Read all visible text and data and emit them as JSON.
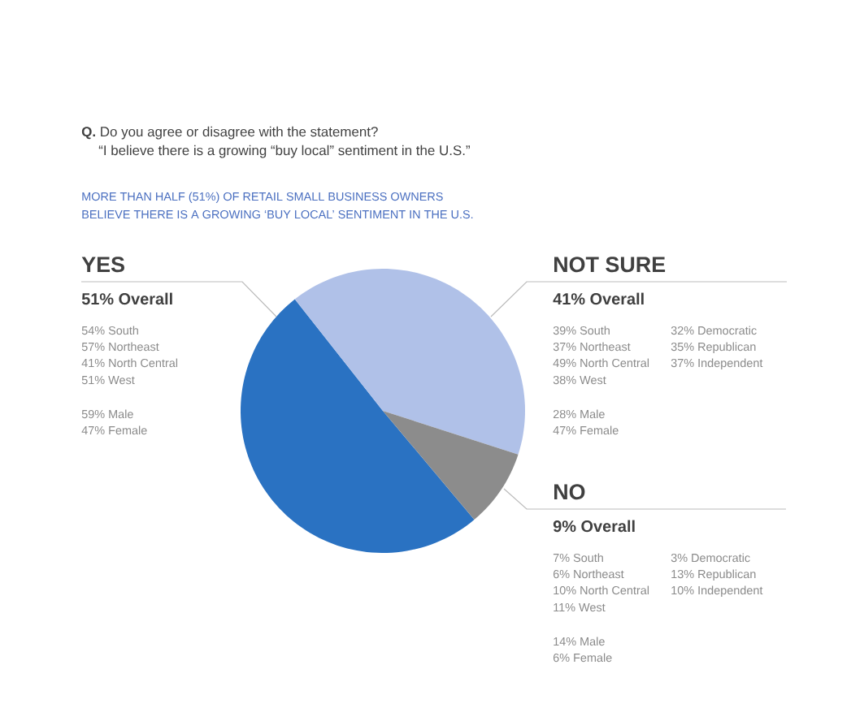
{
  "chart_data": {
    "type": "pie",
    "title": "**Q.** Do you agree or disagree with the statement?",
    "subtitle": "MORE THAN HALF (51%) OF RETAIL SMALL BUSINESS OWNERS",
    "categories": [
      "YES",
      "NOT SURE",
      "NO"
    ],
    "values": [
      51,
      41,
      9
    ],
    "colors": [
      "#2a72c2",
      "#b0c1e8",
      "#8c8c8c"
    ],
    "value_labels": [
      "51% Overall",
      "41% Overall",
      "9% Overall"
    ],
    "annotations": [
      "“I believe there is a growing “buy local” sentiment in the U.S.”",
      "BELIEVE THERE IS A GROWING ‘BUY LOCAL’ SENTIMENT IN THE U.S.",
      "54%  South",
      "57%  Northeast",
      "41%  North Central",
      "51%  West",
      "59%  Male",
      "47%  Female",
      "39%  South",
      "37%  Northeast",
      "49%  North Central",
      "38%  West",
      "28%  Male",
      "47%  Female",
      "32%  Democratic",
      "35%  Republican",
      "37%  Independent",
      "7%  South",
      "6%  Northeast",
      "10%  North Central",
      "11%  West",
      "14%  Male",
      "6%  Female",
      "3%  Democratic",
      "13%  Republican",
      "10%  Independent"
    ]
  }
}
